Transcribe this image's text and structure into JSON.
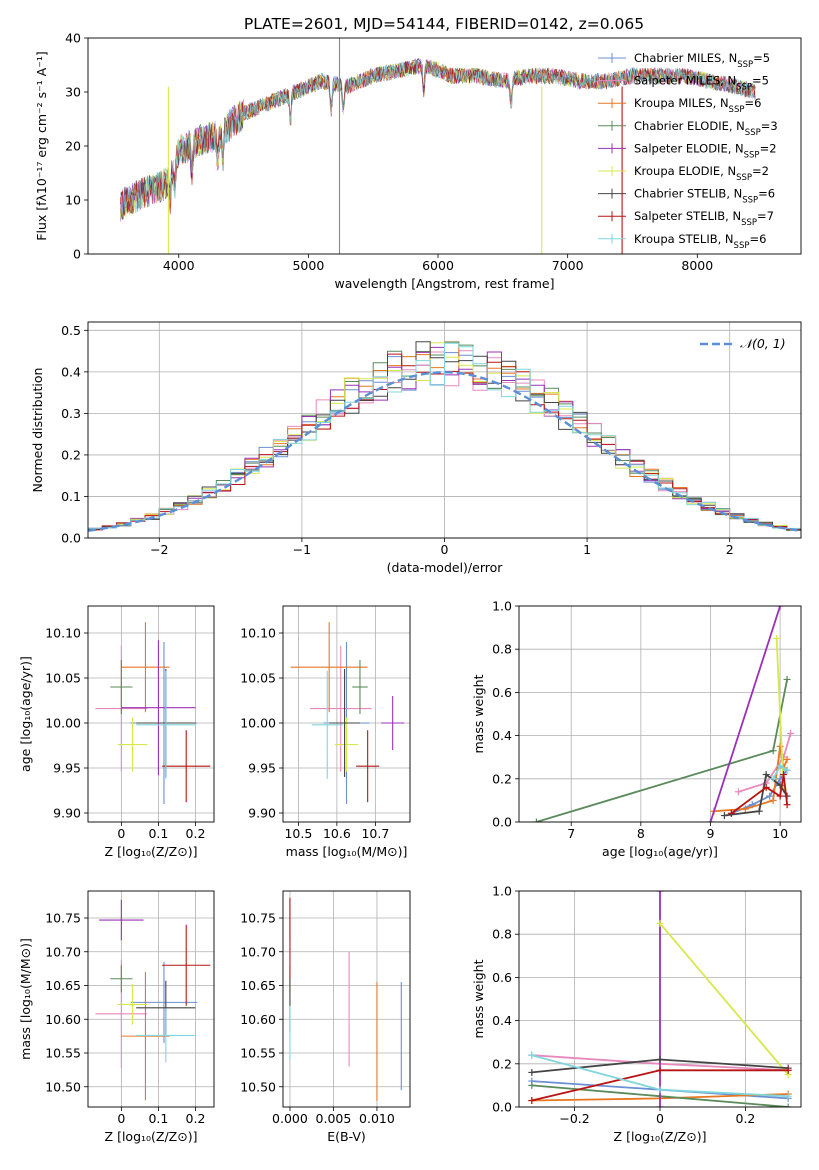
{
  "figure_title": "PLATE=2601, MJD=54144, FIBERID=0142, z=0.065",
  "models": [
    {
      "name": "Chabrier MILES",
      "nssp": "5",
      "color": "#6a8fd4"
    },
    {
      "name": "Salpeter MILES",
      "nssp": "5",
      "color": "#e889bd"
    },
    {
      "name": "Kroupa MILES",
      "nssp": "6",
      "color": "#e87722"
    },
    {
      "name": "Chabrier ELODIE",
      "nssp": "3",
      "color": "#5b8a5b"
    },
    {
      "name": "Salpeter ELODIE",
      "nssp": "2",
      "color": "#9b30b8"
    },
    {
      "name": "Kroupa ELODIE",
      "nssp": "2",
      "color": "#d7e84a"
    },
    {
      "name": "Chabrier STELIB",
      "nssp": "6",
      "color": "#444444"
    },
    {
      "name": "Salpeter STELIB",
      "nssp": "7",
      "color": "#b81414"
    },
    {
      "name": "Kroupa STELIB",
      "nssp": "6",
      "color": "#7fd6dc"
    }
  ],
  "chart_data": [
    {
      "id": "spectrum",
      "type": "line",
      "xlabel": "wavelength [Angstrom, rest frame]",
      "ylabel": "Flux [fλ10⁻¹⁷ erg cm⁻² s⁻¹ A⁻¹]",
      "xlim": [
        3300,
        8800
      ],
      "ylim": [
        0,
        40
      ],
      "xticks": [
        4000,
        5000,
        6000,
        7000,
        8000
      ],
      "yticks": [
        0,
        10,
        20,
        30,
        40
      ],
      "grid": false,
      "legend_position": "top-right",
      "continuum": [
        [
          3550,
          9
        ],
        [
          3700,
          11
        ],
        [
          3900,
          13
        ],
        [
          4000,
          19
        ],
        [
          4150,
          21
        ],
        [
          4300,
          22
        ],
        [
          4500,
          26
        ],
        [
          4700,
          28
        ],
        [
          4900,
          30
        ],
        [
          5100,
          32
        ],
        [
          5300,
          31
        ],
        [
          5500,
          33
        ],
        [
          5700,
          34
        ],
        [
          5900,
          35
        ],
        [
          6100,
          33
        ],
        [
          6300,
          33
        ],
        [
          6500,
          32
        ],
        [
          6700,
          33
        ],
        [
          6900,
          33
        ],
        [
          7100,
          32
        ],
        [
          7300,
          32
        ],
        [
          7500,
          33
        ],
        [
          7700,
          33
        ],
        [
          7900,
          33
        ],
        [
          8100,
          32
        ],
        [
          8300,
          31
        ],
        [
          8450,
          30
        ]
      ]
    },
    {
      "id": "residuals",
      "type": "step",
      "xlabel": "(data-model)/error",
      "ylabel": "Normed distribution",
      "xlim": [
        -2.5,
        2.5
      ],
      "ylim": [
        0,
        0.52
      ],
      "xticks": [
        -2,
        -1,
        0,
        1,
        2
      ],
      "yticks": [
        0.0,
        0.1,
        0.2,
        0.3,
        0.4,
        0.5
      ],
      "grid": true,
      "legend_position": "top-right",
      "reference_label": "𝒩(0, 1)",
      "bin_width": 0.1
    },
    {
      "id": "age_vs_Z",
      "type": "errorbar",
      "xlabel": "Z [log₁₀(Z/Z⊙)]",
      "ylabel": "age  [log₁₀(age/yr)]",
      "xlim": [
        -0.09,
        0.25
      ],
      "ylim": [
        9.89,
        10.13
      ],
      "xticks": [
        0.0,
        0.1,
        0.2
      ],
      "yticks": [
        9.9,
        9.95,
        10.0,
        10.05,
        10.1
      ],
      "points": [
        {
          "x": 0.115,
          "y": 10.0,
          "xerr": 0.09,
          "yerr": 0.09
        },
        {
          "x": 0.0,
          "y": 10.016,
          "xerr": 0.07,
          "yerr": 0.07
        },
        {
          "x": 0.065,
          "y": 10.062,
          "xerr": 0.065,
          "yerr": 0.05
        },
        {
          "x": 0.0,
          "y": 10.04,
          "xerr": 0.03,
          "yerr": 0.03
        },
        {
          "x": 0.1,
          "y": 10.017,
          "xerr": 0.1,
          "yerr": 0.075
        },
        {
          "x": 0.03,
          "y": 9.976,
          "xerr": 0.04,
          "yerr": 0.03
        },
        {
          "x": 0.12,
          "y": 10.0,
          "xerr": 0.08,
          "yerr": 0.06
        },
        {
          "x": 0.175,
          "y": 9.952,
          "xerr": 0.065,
          "yerr": 0.04
        },
        {
          "x": 0.12,
          "y": 9.998,
          "xerr": 0.08,
          "yerr": 0.06
        }
      ]
    },
    {
      "id": "age_vs_mass",
      "type": "errorbar",
      "xlabel": "mass [log₁₀(M/M⊙)]",
      "ylabel": "",
      "xlim": [
        10.46,
        10.79
      ],
      "ylim": [
        9.89,
        10.13
      ],
      "xticks": [
        10.5,
        10.6,
        10.7
      ],
      "yticks": [
        9.9,
        9.95,
        10.0,
        10.05,
        10.1
      ],
      "points": [
        {
          "x": 10.625,
          "y": 10.0,
          "xerr": 0.06,
          "yerr": 0.09
        },
        {
          "x": 10.61,
          "y": 10.016,
          "xerr": 0.08,
          "yerr": 0.07
        },
        {
          "x": 10.58,
          "y": 10.062,
          "xerr": 0.1,
          "yerr": 0.05
        },
        {
          "x": 10.66,
          "y": 10.04,
          "xerr": 0.02,
          "yerr": 0.03
        },
        {
          "x": 10.745,
          "y": 10.0,
          "xerr": 0.03,
          "yerr": 0.03
        },
        {
          "x": 10.625,
          "y": 9.976,
          "xerr": 0.03,
          "yerr": 0.03
        },
        {
          "x": 10.62,
          "y": 10.0,
          "xerr": 0.04,
          "yerr": 0.06
        },
        {
          "x": 10.68,
          "y": 9.952,
          "xerr": 0.03,
          "yerr": 0.04
        },
        {
          "x": 10.575,
          "y": 9.998,
          "xerr": 0.04,
          "yerr": 0.06
        }
      ]
    },
    {
      "id": "weight_vs_age",
      "type": "line",
      "xlabel": "age  [log₁₀(age/yr)]",
      "ylabel": "mass weight",
      "xlim": [
        6.25,
        10.3
      ],
      "ylim": [
        0,
        1.0
      ],
      "xticks": [
        7,
        8,
        9,
        10
      ],
      "yticks": [
        0.0,
        0.2,
        0.4,
        0.6,
        0.8,
        1.0
      ],
      "grid": true,
      "series": [
        {
          "points": [
            [
              9.3,
              0.04
            ],
            [
              9.6,
              0.08
            ],
            [
              9.85,
              0.12
            ],
            [
              10.0,
              0.2
            ],
            [
              10.1,
              0.24
            ]
          ]
        },
        {
          "points": [
            [
              9.4,
              0.14
            ],
            [
              9.8,
              0.18
            ],
            [
              10.05,
              0.3
            ],
            [
              10.15,
              0.41
            ]
          ]
        },
        {
          "points": [
            [
              9.05,
              0.05
            ],
            [
              9.5,
              0.06
            ],
            [
              9.9,
              0.1
            ],
            [
              10.0,
              0.35
            ],
            [
              10.05,
              0.25
            ],
            [
              10.1,
              0.29
            ]
          ]
        },
        {
          "points": [
            [
              6.5,
              0.0
            ],
            [
              9.9,
              0.33
            ],
            [
              10.1,
              0.66
            ]
          ]
        },
        {
          "points": [
            [
              9.0,
              0.0
            ],
            [
              10.0,
              1.0
            ]
          ]
        },
        {
          "points": [
            [
              9.95,
              0.85
            ],
            [
              10.05,
              0.15
            ]
          ]
        },
        {
          "points": [
            [
              9.2,
              0.03
            ],
            [
              9.7,
              0.05
            ],
            [
              9.8,
              0.22
            ],
            [
              10.0,
              0.17
            ],
            [
              10.1,
              0.12
            ]
          ]
        },
        {
          "points": [
            [
              9.3,
              0.04
            ],
            [
              9.8,
              0.16
            ],
            [
              10.0,
              0.12
            ],
            [
              10.05,
              0.22
            ],
            [
              10.1,
              0.08
            ]
          ]
        },
        {
          "points": [
            [
              9.9,
              0.2
            ],
            [
              10.0,
              0.26
            ],
            [
              10.1,
              0.24
            ]
          ]
        }
      ]
    },
    {
      "id": "mass_vs_Z",
      "type": "errorbar",
      "xlabel": "Z [log₁₀(Z/Z⊙)]",
      "ylabel": "mass [log₁₀(M/M⊙)]",
      "xlim": [
        -0.09,
        0.25
      ],
      "ylim": [
        10.47,
        10.79
      ],
      "xticks": [
        0.0,
        0.1,
        0.2
      ],
      "yticks": [
        10.5,
        10.55,
        10.6,
        10.65,
        10.7,
        10.75
      ],
      "points": [
        {
          "x": 0.115,
          "y": 10.625,
          "xerr": 0.09,
          "yerr": 0.06
        },
        {
          "x": 0.0,
          "y": 10.608,
          "xerr": 0.07,
          "yerr": 0.08
        },
        {
          "x": 0.065,
          "y": 10.575,
          "xerr": 0.065,
          "yerr": 0.095
        },
        {
          "x": 0.0,
          "y": 10.66,
          "xerr": 0.03,
          "yerr": 0.02
        },
        {
          "x": 0.0,
          "y": 10.747,
          "xerr": 0.06,
          "yerr": 0.03
        },
        {
          "x": 0.03,
          "y": 10.622,
          "xerr": 0.04,
          "yerr": 0.03
        },
        {
          "x": 0.12,
          "y": 10.617,
          "xerr": 0.08,
          "yerr": 0.04
        },
        {
          "x": 0.175,
          "y": 10.68,
          "xerr": 0.065,
          "yerr": 0.06
        },
        {
          "x": 0.12,
          "y": 10.576,
          "xerr": 0.08,
          "yerr": 0.04
        }
      ]
    },
    {
      "id": "mass_vs_ebv",
      "type": "errorbar",
      "xlabel": "E(B-V)",
      "ylabel": "",
      "xlim": [
        -0.0008,
        0.0138
      ],
      "ylim": [
        10.47,
        10.79
      ],
      "xticks": [
        0.0,
        0.005,
        0.01
      ],
      "xticklabels": [
        "0.000",
        "0.005",
        "0.010"
      ],
      "yticks": [
        10.5,
        10.55,
        10.6,
        10.65,
        10.7,
        10.75
      ],
      "points": [
        {
          "x": 0.0128,
          "y": 10.575,
          "xerr": 0,
          "yerr": 0.08
        },
        {
          "x": 0.0068,
          "y": 10.615,
          "xerr": 0,
          "yerr": 0.085
        },
        {
          "x": 0.01,
          "y": 10.567,
          "xerr": 0,
          "yerr": 0.088
        },
        {
          "x": 0.0,
          "y": 10.66,
          "xerr": 0,
          "yerr": 0.02
        },
        {
          "x": 0.0,
          "y": 10.747,
          "xerr": 0,
          "yerr": 0.03
        },
        {
          "x": 0.0,
          "y": 10.622,
          "xerr": 0,
          "yerr": 0.03
        },
        {
          "x": 0.0,
          "y": 10.62,
          "xerr": 0,
          "yerr": 0.04
        },
        {
          "x": 0.0,
          "y": 10.72,
          "xerr": 0,
          "yerr": 0.06
        },
        {
          "x": 0.0,
          "y": 10.58,
          "xerr": 0,
          "yerr": 0.04
        }
      ]
    },
    {
      "id": "weight_vs_Z",
      "type": "line",
      "xlabel": "Z [log₁₀(Z/Z⊙)]",
      "ylabel": "mass weight",
      "xlim": [
        -0.33,
        0.33
      ],
      "ylim": [
        0,
        1.0
      ],
      "xticks": [
        -0.2,
        0.0,
        0.2
      ],
      "yticks": [
        0.0,
        0.2,
        0.4,
        0.6,
        0.8,
        1.0
      ],
      "grid": true,
      "series": [
        {
          "points": [
            [
              -0.3,
              0.12
            ],
            [
              0.0,
              0.08
            ],
            [
              0.3,
              0.04
            ]
          ]
        },
        {
          "points": [
            [
              -0.3,
              0.24
            ],
            [
              0.0,
              0.2
            ],
            [
              0.3,
              0.17
            ]
          ]
        },
        {
          "points": [
            [
              -0.3,
              0.03
            ],
            [
              0.0,
              0.04
            ],
            [
              0.3,
              0.06
            ]
          ]
        },
        {
          "points": [
            [
              -0.3,
              0.1
            ],
            [
              0.0,
              0.05
            ],
            [
              0.3,
              0.0
            ]
          ]
        },
        {
          "points": [
            [
              0.0,
              1.0
            ],
            [
              0.0,
              0.0
            ]
          ]
        },
        {
          "points": [
            [
              0.0,
              0.85
            ],
            [
              0.3,
              0.15
            ]
          ]
        },
        {
          "points": [
            [
              -0.3,
              0.16
            ],
            [
              0.0,
              0.22
            ],
            [
              0.3,
              0.18
            ]
          ]
        },
        {
          "points": [
            [
              -0.3,
              0.03
            ],
            [
              0.0,
              0.17
            ],
            [
              0.3,
              0.17
            ]
          ]
        },
        {
          "points": [
            [
              -0.3,
              0.24
            ],
            [
              0.0,
              0.08
            ],
            [
              0.3,
              0.05
            ]
          ]
        }
      ]
    }
  ]
}
